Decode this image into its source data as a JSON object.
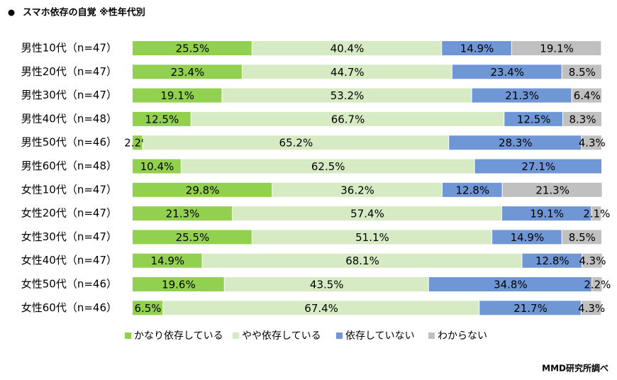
{
  "chart_data": {
    "type": "stacked-bar-horizontal",
    "title": "スマホ依存の自覚 ※性年代別",
    "source": "MMD研究所調べ",
    "categories": [
      "男性10代（n=47）",
      "男性20代（n=47）",
      "男性30代（n=47）",
      "男性40代（n=48）",
      "男性50代（n=46）",
      "男性60代（n=48）",
      "女性10代（n=47）",
      "女性20代（n=47）",
      "女性30代（n=47）",
      "女性40代（n=47）",
      "女性50代（n=46）",
      "女性60代（n=46）"
    ],
    "xlim": [
      0,
      100
    ],
    "series": [
      {
        "name": "かなり依存している",
        "color": "#92d050",
        "values": [
          25.5,
          23.4,
          19.1,
          12.5,
          2.2,
          10.4,
          29.8,
          21.3,
          25.5,
          14.9,
          19.6,
          6.5
        ],
        "value_labels": [
          "25.5%",
          "23.4%",
          "19.1%",
          "12.5%",
          "2.2%",
          "10.4%",
          "29.8%",
          "21.3%",
          "25.5%",
          "14.9%",
          "19.6%",
          "6.5%"
        ]
      },
      {
        "name": "やや依存している",
        "color": "#d6ebc3",
        "values": [
          40.4,
          44.7,
          53.2,
          66.7,
          65.2,
          62.5,
          36.2,
          57.4,
          51.1,
          68.1,
          43.5,
          67.4
        ],
        "value_labels": [
          "40.4%",
          "44.7%",
          "53.2%",
          "66.7%",
          "65.2%",
          "62.5%",
          "36.2%",
          "57.4%",
          "51.1%",
          "68.1%",
          "43.5%",
          "67.4%"
        ]
      },
      {
        "name": "依存していない",
        "color": "#6f97d6",
        "values": [
          14.9,
          23.4,
          21.3,
          12.5,
          28.3,
          27.1,
          12.8,
          19.1,
          14.9,
          12.8,
          34.8,
          21.7
        ],
        "value_labels": [
          "14.9%",
          "23.4%",
          "21.3%",
          "12.5%",
          "28.3%",
          "27.1%",
          "12.8%",
          "19.1%",
          "14.9%",
          "12.8%",
          "34.8%",
          "21.7%"
        ]
      },
      {
        "name": "わからない",
        "color": "#c0c0c0",
        "values": [
          19.1,
          8.5,
          6.4,
          8.3,
          4.3,
          0,
          21.3,
          2.1,
          8.5,
          4.3,
          2.2,
          4.3
        ],
        "value_labels": [
          "19.1%",
          "8.5%",
          "6.4%",
          "8.3%",
          "4.3%",
          null,
          "21.3%",
          "2.1%",
          "8.5%",
          "4.3%",
          "2.2%",
          "4.3%"
        ]
      }
    ]
  }
}
